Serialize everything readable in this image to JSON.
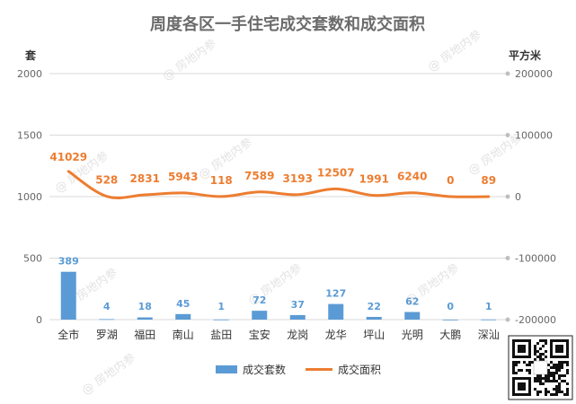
{
  "chart_data": {
    "type": "bar",
    "title": "周度各区一手住宅成交套数和成交面积",
    "left_axis_unit": "套",
    "right_axis_unit": "平方米",
    "categories": [
      "全市",
      "罗湖",
      "福田",
      "南山",
      "盐田",
      "宝安",
      "龙岗",
      "龙华",
      "坪山",
      "光明",
      "大鹏",
      "深汕"
    ],
    "left_ticks": [
      "2000",
      "1500",
      "1000",
      "500",
      "0"
    ],
    "right_ticks": [
      "200000",
      "100000",
      "0",
      "-100000",
      "-200000"
    ],
    "ylim_left": [
      0,
      2000
    ],
    "ylim_right": [
      -200000,
      200000
    ],
    "grid": true,
    "legend_position": "bottom",
    "series": [
      {
        "name": "成交套数",
        "type": "bar",
        "axis": "left",
        "color": "#5b9bd5",
        "values": [
          389,
          4,
          18,
          45,
          1,
          72,
          37,
          127,
          22,
          62,
          0,
          1
        ],
        "labels": [
          "389",
          "4",
          "18",
          "45",
          "1",
          "72",
          "37",
          "127",
          "22",
          "62",
          "0",
          "1"
        ]
      },
      {
        "name": "成交面积",
        "type": "line",
        "axis": "right",
        "color": "#ed7d31",
        "values": [
          41029,
          528,
          2831,
          5943,
          118,
          7589,
          3193,
          12507,
          1991,
          6240,
          0,
          89
        ],
        "labels": [
          "41029",
          "528",
          "2831",
          "5943",
          "118",
          "7589",
          "3193",
          "12507",
          "1991",
          "6240",
          "0",
          "89"
        ]
      }
    ]
  },
  "watermark": "@ 房地内参"
}
